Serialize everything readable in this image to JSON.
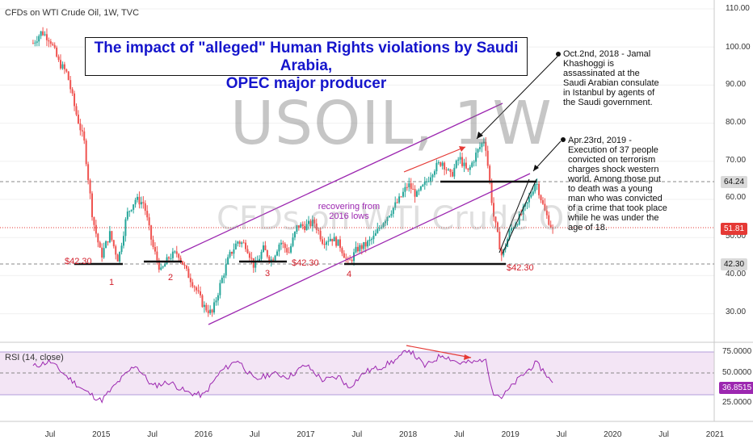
{
  "header": {
    "symbol_text": "CFDs on WTI Crude Oil, 1W, TVC"
  },
  "title": {
    "line1": "The impact of \"alleged\" Human Rights violations by Saudi Arabia,",
    "line2": "OPEC major producer"
  },
  "watermark": {
    "ticker": "USOIL, 1W",
    "name": "CFDs on WTI Crude Oil"
  },
  "annotations": {
    "note1": "Oct.2nd, 2018 - Jamal Khashoggi is assassinated at the Saudi Arabian consulate in Istanbul by agents of the Saudi government.",
    "note2": "Apr.23rd, 2019 - Execution of 37 people convicted on terrorism charges shock western world. Among those put to death was a young man who was convicted of a crime that took place while he was under the age of 18.",
    "recovering": "recovering from 2016 lows",
    "lows": [
      {
        "label": "$42.30",
        "number": "1"
      },
      {
        "label": "",
        "number": "2"
      },
      {
        "label": "$42.30",
        "number": "3"
      },
      {
        "label": "$42.30",
        "number": "4"
      }
    ]
  },
  "price_axis": {
    "ticks": [
      "110.00",
      "100.00",
      "90.00",
      "80.00",
      "70.00",
      "60.00",
      "50.00",
      "40.00",
      "30.00"
    ],
    "badges": [
      {
        "value": "64.24",
        "color": "#d9d9d9",
        "text_color": "#111111"
      },
      {
        "value": "51.81",
        "color": "#e53935",
        "text_color": "#ffffff"
      },
      {
        "value": "42.30",
        "color": "#d9d9d9",
        "text_color": "#111111"
      }
    ]
  },
  "rsi": {
    "header": "RSI (14, close)",
    "ticks": [
      "75.0000",
      "50.0000",
      "25.0000"
    ],
    "badge": "36.8515",
    "badge_color": "#9c27b0"
  },
  "time_axis": {
    "labels": [
      "Jul",
      "2015",
      "Jul",
      "2016",
      "Jul",
      "2017",
      "Jul",
      "2018",
      "Jul",
      "2019",
      "Jul",
      "2020",
      "Jul",
      "2021"
    ]
  },
  "colors": {
    "up": "#26a69a",
    "down": "#ef5350",
    "channel": "#9c27b0",
    "title_blue": "#1515cc",
    "annotation_red": "#d21f2b"
  },
  "chart_data": {
    "type": "candlestick",
    "title": "CFDs on WTI Crude Oil, 1W, TVC",
    "x_range": [
      "2014-05",
      "2019-06"
    ],
    "ylim": [
      25,
      112
    ],
    "price_path": [
      [
        "2014-05",
        101
      ],
      [
        "2014-06",
        104
      ],
      [
        "2014-07",
        102
      ],
      [
        "2014-08",
        96
      ],
      [
        "2014-09",
        93
      ],
      [
        "2014-10",
        83
      ],
      [
        "2014-11",
        75
      ],
      [
        "2014-12",
        55
      ],
      [
        "2015-01",
        45
      ],
      [
        "2015-02",
        51
      ],
      [
        "2015-03",
        44
      ],
      [
        "2015-04",
        56
      ],
      [
        "2015-05",
        60
      ],
      [
        "2015-06",
        59
      ],
      [
        "2015-07",
        48
      ],
      [
        "2015-08",
        41
      ],
      [
        "2015-09",
        45
      ],
      [
        "2015-10",
        46
      ],
      [
        "2015-11",
        41
      ],
      [
        "2015-12",
        37
      ],
      [
        "2016-01",
        32
      ],
      [
        "2016-02",
        30
      ],
      [
        "2016-03",
        38
      ],
      [
        "2016-04",
        45
      ],
      [
        "2016-05",
        49
      ],
      [
        "2016-06",
        48
      ],
      [
        "2016-07",
        42
      ],
      [
        "2016-08",
        47
      ],
      [
        "2016-09",
        44
      ],
      [
        "2016-10",
        49
      ],
      [
        "2016-11",
        46
      ],
      [
        "2016-12",
        53
      ],
      [
        "2017-01",
        53
      ],
      [
        "2017-02",
        54
      ],
      [
        "2017-03",
        49
      ],
      [
        "2017-04",
        50
      ],
      [
        "2017-05",
        48
      ],
      [
        "2017-06",
        43
      ],
      [
        "2017-07",
        47
      ],
      [
        "2017-08",
        48
      ],
      [
        "2017-09",
        50
      ],
      [
        "2017-10",
        54
      ],
      [
        "2017-11",
        57
      ],
      [
        "2017-12",
        60
      ],
      [
        "2018-01",
        64
      ],
      [
        "2018-02",
        61
      ],
      [
        "2018-03",
        64
      ],
      [
        "2018-04",
        68
      ],
      [
        "2018-05",
        70
      ],
      [
        "2018-06",
        66
      ],
      [
        "2018-07",
        71
      ],
      [
        "2018-08",
        67
      ],
      [
        "2018-09",
        72
      ],
      [
        "2018-10",
        76
      ],
      [
        "2018-11",
        56
      ],
      [
        "2018-12",
        45
      ],
      [
        "2019-01",
        52
      ],
      [
        "2019-02",
        55
      ],
      [
        "2019-03",
        59
      ],
      [
        "2019-04",
        65
      ],
      [
        "2019-05",
        57
      ],
      [
        "2019-06",
        51.81
      ]
    ],
    "horizontal_levels": [
      42.3,
      64.24,
      51.81
    ],
    "channel": {
      "upper": [
        [
          "2015-08",
          46
        ],
        [
          "2018-10",
          85
        ]
      ],
      "lower": [
        [
          "2016-02",
          26
        ],
        [
          "2019-04",
          66
        ]
      ]
    },
    "rsi": {
      "name": "RSI (14, close)",
      "ylim": [
        10,
        85
      ],
      "levels": [
        75,
        50,
        25
      ],
      "path": [
        [
          "2014-05",
          58
        ],
        [
          "2014-07",
          64
        ],
        [
          "2014-09",
          46
        ],
        [
          "2014-11",
          30
        ],
        [
          "2015-01",
          18
        ],
        [
          "2015-03",
          40
        ],
        [
          "2015-05",
          60
        ],
        [
          "2015-07",
          35
        ],
        [
          "2015-09",
          40
        ],
        [
          "2015-11",
          28
        ],
        [
          "2016-01",
          24
        ],
        [
          "2016-03",
          52
        ],
        [
          "2016-05",
          66
        ],
        [
          "2016-07",
          42
        ],
        [
          "2016-09",
          50
        ],
        [
          "2016-11",
          46
        ],
        [
          "2017-01",
          60
        ],
        [
          "2017-03",
          42
        ],
        [
          "2017-05",
          46
        ],
        [
          "2017-06",
          33
        ],
        [
          "2017-08",
          52
        ],
        [
          "2017-10",
          58
        ],
        [
          "2017-12",
          68
        ],
        [
          "2018-01",
          79
        ],
        [
          "2018-03",
          58
        ],
        [
          "2018-05",
          72
        ],
        [
          "2018-07",
          62
        ],
        [
          "2018-09",
          63
        ],
        [
          "2018-10",
          68
        ],
        [
          "2018-11",
          28
        ],
        [
          "2018-12",
          22
        ],
        [
          "2019-02",
          44
        ],
        [
          "2019-04",
          62
        ],
        [
          "2019-05",
          52
        ],
        [
          "2019-06",
          36.85
        ]
      ]
    }
  }
}
